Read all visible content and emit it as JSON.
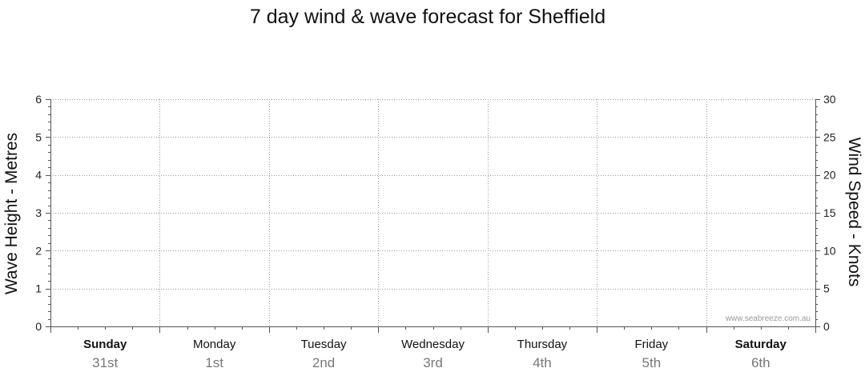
{
  "chart_data": {
    "type": "line",
    "title": "7 day wind & wave forecast for Sheffield",
    "ylabel_left": "Wave Height - Metres",
    "ylabel_right": "Wind Speed - Knots",
    "ylim_left": [
      0,
      6
    ],
    "ylim_right": [
      0,
      30
    ],
    "left_ticks": [
      "0",
      "1",
      "2",
      "3",
      "4",
      "5",
      "6"
    ],
    "right_ticks": [
      "0",
      "5",
      "10",
      "15",
      "20",
      "25",
      "30"
    ],
    "grid": true,
    "days": [
      {
        "name": "Sunday",
        "date": "31st",
        "bold": true
      },
      {
        "name": "Monday",
        "date": "1st",
        "bold": false
      },
      {
        "name": "Tuesday",
        "date": "2nd",
        "bold": false
      },
      {
        "name": "Wednesday",
        "date": "3rd",
        "bold": false
      },
      {
        "name": "Thursday",
        "date": "4th",
        "bold": false
      },
      {
        "name": "Friday",
        "date": "5th",
        "bold": false
      },
      {
        "name": "Saturday",
        "date": "6th",
        "bold": true
      }
    ],
    "series": [],
    "watermark": "www.seabreeze.com.au"
  }
}
